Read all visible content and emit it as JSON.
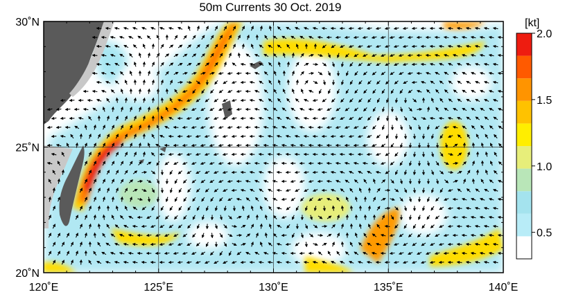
{
  "title": "50m Currents  30 Oct. 2019",
  "colorbar": {
    "unit_label": "[kt]",
    "ticks": [
      "2.0",
      "1.5",
      "1.0",
      "0.5"
    ],
    "tick_values": [
      2.0,
      1.5,
      1.0,
      0.5
    ],
    "range": [
      0.3,
      2.0
    ],
    "colors": [
      "#ffffff",
      "#b8ecf7",
      "#a4e3ee",
      "#b9e6b8",
      "#e7ee7a",
      "#ffee00",
      "#ffc200",
      "#ff9400",
      "#ff5a00",
      "#ee1c10"
    ]
  },
  "axes": {
    "lon_ticks": [
      "120˚E",
      "125˚E",
      "130˚E",
      "135˚E",
      "140˚E"
    ],
    "lon_values": [
      120,
      125,
      130,
      135,
      140
    ],
    "lat_ticks": [
      "30˚N",
      "25˚N",
      "20˚N"
    ],
    "lat_values": [
      30,
      25,
      20
    ],
    "lon_range": [
      120,
      140
    ],
    "lat_range": [
      20,
      30
    ],
    "grid": true
  },
  "colors": {
    "land": "#5a5a5a",
    "shelf": "#c8c8c8",
    "ocean": "#ffffff",
    "grid": "#333333",
    "arrow": "#000000"
  }
}
